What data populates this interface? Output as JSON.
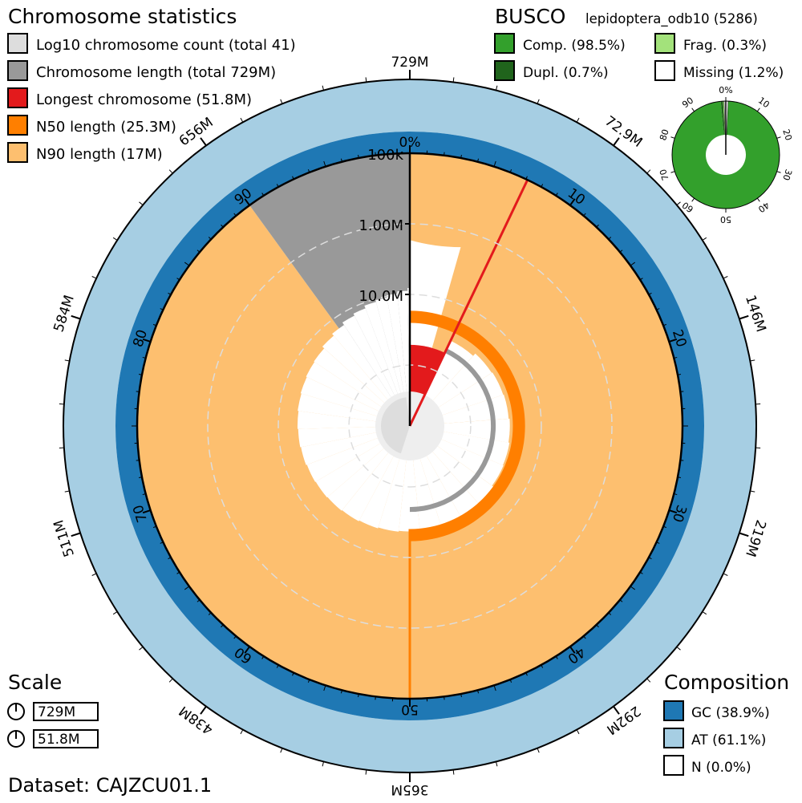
{
  "chart_data": {
    "type": "snail",
    "title": "Chromosome statistics",
    "dataset": "Dataset: CAJZCU01.1",
    "legend": [
      {
        "label": "Log10 chromosome count (total 41)",
        "color": "#dddddd"
      },
      {
        "label": "Chromosome length (total 729M)",
        "color": "#999999"
      },
      {
        "label": "Longest chromosome (51.8M)",
        "color": "#e31a1c"
      },
      {
        "label": "N50 length (25.3M)",
        "color": "#ff7f00"
      },
      {
        "label": "N90 length (17M)",
        "color": "#fdbf6f"
      }
    ],
    "total_span_mb": 729,
    "longest_mb": 51.8,
    "n50_mb": 25.3,
    "n90_mb": 17,
    "n50_pct": 50,
    "n90_pct": 90,
    "longest_pct": 7.1,
    "chromosome_count": 41,
    "radial_labels": [
      "100k",
      "1.00M",
      "10.0M"
    ],
    "outer_ticks": [
      {
        "pct": 0,
        "label": "729M"
      },
      {
        "pct": 10,
        "label": "72.9M"
      },
      {
        "pct": 20,
        "label": "146M"
      },
      {
        "pct": 30,
        "label": "219M"
      },
      {
        "pct": 40,
        "label": "292M"
      },
      {
        "pct": 50,
        "label": "365M"
      },
      {
        "pct": 60,
        "label": "438M"
      },
      {
        "pct": 70,
        "label": "511M"
      },
      {
        "pct": 80,
        "label": "584M"
      },
      {
        "pct": 90,
        "label": "656M"
      }
    ],
    "inner_ticks": [
      {
        "pct": 0,
        "label": "0%"
      },
      {
        "pct": 10,
        "label": "10"
      },
      {
        "pct": 20,
        "label": "20"
      },
      {
        "pct": 30,
        "label": "30"
      },
      {
        "pct": 40,
        "label": "40"
      },
      {
        "pct": 50,
        "label": "50"
      },
      {
        "pct": 60,
        "label": "60"
      },
      {
        "pct": 70,
        "label": "70"
      },
      {
        "pct": 80,
        "label": "80"
      },
      {
        "pct": 90,
        "label": "90"
      }
    ],
    "scale": {
      "title": "Scale",
      "items": [
        "729M",
        "51.8M"
      ]
    },
    "composition": {
      "title": "Composition",
      "items": [
        {
          "label": "GC (38.9%)",
          "color": "#1f78b4",
          "value": 38.9
        },
        {
          "label": "AT (61.1%)",
          "color": "#a6cee3",
          "value": 61.1
        },
        {
          "label": "N (0.0%)",
          "color": "#ffffff",
          "value": 0.0
        }
      ]
    },
    "busco": {
      "title": "BUSCO",
      "lineage": "lepidoptera_odb10 (5286)",
      "items": [
        {
          "label": "Comp. (98.5%)",
          "color": "#33a02c",
          "value": 98.5
        },
        {
          "label": "Frag. (0.3%)",
          "color": "#a3e27b",
          "value": 0.3
        },
        {
          "label": "Dupl. (0.7%)",
          "color": "#20641c",
          "value": 0.7
        },
        {
          "label": "Missing (1.2%)",
          "color": "#ffffff",
          "value": 1.2
        }
      ],
      "ticks": [
        {
          "pct": 0,
          "label": "0%"
        },
        {
          "pct": 10,
          "label": "10"
        },
        {
          "pct": 20,
          "label": "20"
        },
        {
          "pct": 30,
          "label": "30"
        },
        {
          "pct": 40,
          "label": "40"
        },
        {
          "pct": 50,
          "label": "50"
        },
        {
          "pct": 60,
          "label": "60"
        },
        {
          "pct": 70,
          "label": "70"
        },
        {
          "pct": 80,
          "label": "80"
        },
        {
          "pct": 90,
          "label": "90"
        }
      ]
    }
  }
}
